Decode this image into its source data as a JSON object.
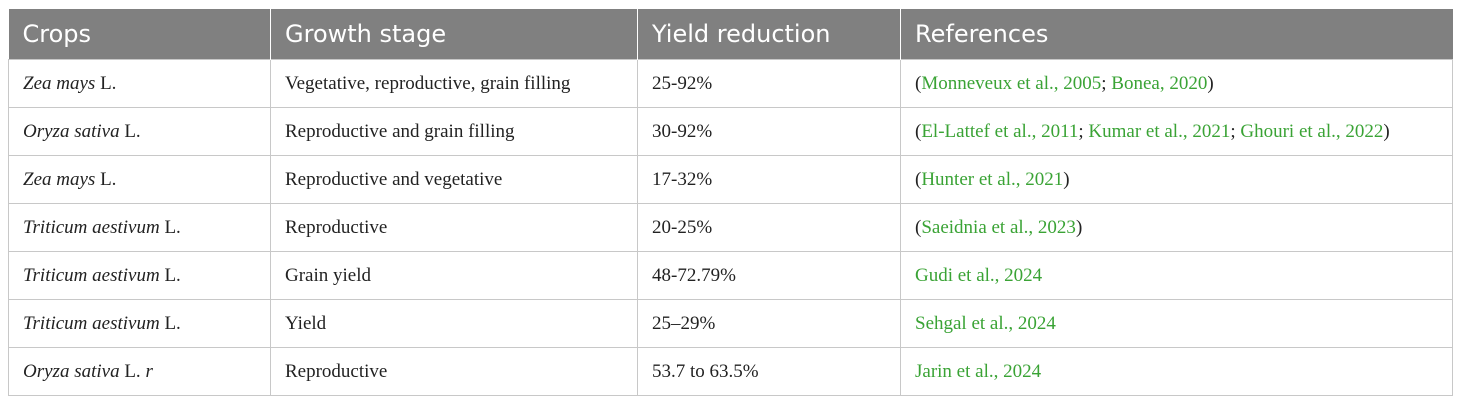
{
  "table": {
    "headers": [
      "Crops",
      "Growth stage",
      "Yield reduction",
      "References"
    ],
    "rows": [
      {
        "crop_species": "Zea mays",
        "crop_suffix": " L.",
        "growth_stage": "Vegetative, reproductive, grain filling",
        "yield_reduction": "25-92%",
        "ref_open": "(",
        "refs": [
          {
            "text": "Monneveux et al., 2005",
            "sep": "; "
          },
          {
            "text": "Bonea, 2020",
            "sep": ""
          }
        ],
        "ref_close": ")"
      },
      {
        "crop_species": "Oryza sativa",
        "crop_suffix": " L.",
        "growth_stage": "Reproductive and grain filling",
        "yield_reduction": "30-92%",
        "ref_open": "(",
        "refs": [
          {
            "text": "El-Lattef et al., 2011",
            "sep": "; "
          },
          {
            "text": "Kumar et al., 2021",
            "sep": "; "
          },
          {
            "text": "Ghouri et al., 2022",
            "sep": ""
          }
        ],
        "ref_close": ")"
      },
      {
        "crop_species": "Zea mays",
        "crop_suffix": " L.",
        "growth_stage": "Reproductive and vegetative",
        "yield_reduction": "17-32%",
        "ref_open": "(",
        "refs": [
          {
            "text": "Hunter et al., 2021",
            "sep": ""
          }
        ],
        "ref_close": ")"
      },
      {
        "crop_species": "Triticum aestivum",
        "crop_suffix": " L.",
        "growth_stage": "Reproductive",
        "yield_reduction": "20-25%",
        "ref_open": "(",
        "refs": [
          {
            "text": "Saeidnia et al., 2023",
            "sep": ""
          }
        ],
        "ref_close": ")"
      },
      {
        "crop_species": "Triticum aestivum",
        "crop_suffix": " L.",
        "growth_stage": "Grain yield",
        "yield_reduction": "48-72.79%",
        "ref_open": "",
        "refs": [
          {
            "text": "Gudi et al., 2024",
            "sep": ""
          }
        ],
        "ref_close": ""
      },
      {
        "crop_species": "Triticum aestivum",
        "crop_suffix": " L.",
        "growth_stage": "Yield",
        "yield_reduction": "25–29%",
        "ref_open": "",
        "refs": [
          {
            "text": "Sehgal et al., 2024",
            "sep": ""
          }
        ],
        "ref_close": ""
      },
      {
        "crop_species": "Oryza sativa",
        "crop_suffix": " L. ",
        "crop_suffix_italic": "r",
        "growth_stage": "Reproductive",
        "yield_reduction": "53.7 to 63.5%",
        "ref_open": "",
        "refs": [
          {
            "text": "Jarin et al., 2024",
            "sep": ""
          }
        ],
        "ref_close": ""
      }
    ]
  },
  "colors": {
    "header_bg": "#808080",
    "header_text": "#ffffff",
    "link": "#3aa335",
    "border": "#c8c8c8"
  }
}
